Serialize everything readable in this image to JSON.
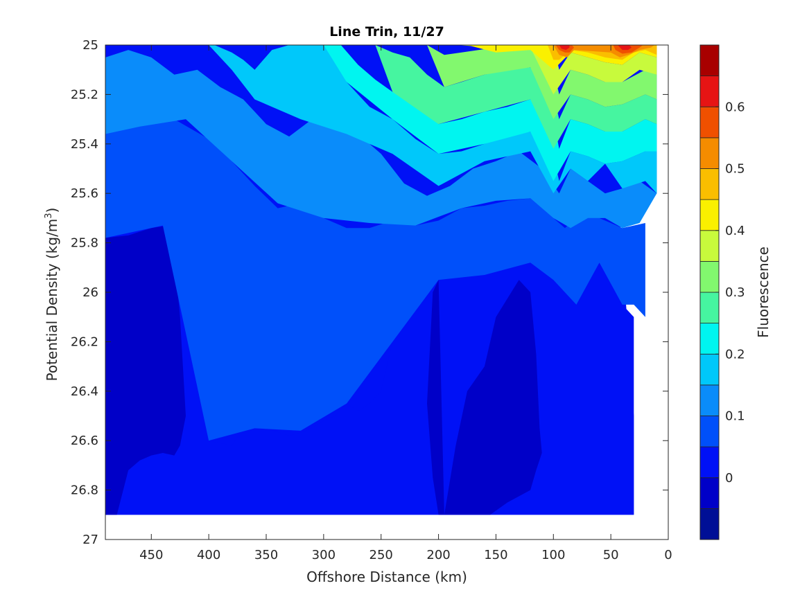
{
  "chart_data": {
    "type": "contour",
    "title": "Line Trin, 11/27",
    "xlabel": "Offshore Distance (km)",
    "ylabel": "Potential Density (kg/m",
    "ylabel_superscript": "3",
    "ylabel_close": ")",
    "colorbar_label": "Fluorescence",
    "xlim": [
      490,
      0
    ],
    "x_reversed": true,
    "ylim": [
      25,
      27
    ],
    "y_reversed": true,
    "x_ticks": [
      450,
      400,
      350,
      300,
      250,
      200,
      150,
      100,
      50,
      0
    ],
    "y_ticks": [
      "25",
      "25.2",
      "25.4",
      "25.6",
      "25.8",
      "26",
      "26.2",
      "26.4",
      "26.6",
      "26.8",
      "27"
    ],
    "colorbar_ticks": [
      "0",
      "0.1",
      "0.2",
      "0.3",
      "0.4",
      "0.5",
      "0.6"
    ],
    "colorbar_range": [
      -0.1,
      0.7
    ],
    "contour_levels": [
      -0.1,
      -0.05,
      0,
      0.05,
      0.1,
      0.15,
      0.2,
      0.25,
      0.3,
      0.35,
      0.4,
      0.45,
      0.5,
      0.55,
      0.6,
      0.65,
      0.7
    ],
    "colormap": [
      "#000f96",
      "#0000c8",
      "#0011f6",
      "#0050fa",
      "#0a8cfa",
      "#00c8fa",
      "#00f5f0",
      "#46f5a0",
      "#82f86e",
      "#c8fa3c",
      "#faf000",
      "#fabe00",
      "#f58c00",
      "#f05000",
      "#e61414",
      "#a80000"
    ],
    "data_extent": {
      "y_max": 26.9,
      "x_min_deep": 30,
      "x_min_shallow": 10
    },
    "regions": [
      {
        "level": 0.025,
        "x": [
          490,
          490,
          480,
          470,
          450,
          430,
          415,
          410,
          400,
          380,
          370,
          360,
          350,
          330,
          315,
          300,
          290,
          280,
          270,
          260,
          250,
          240,
          225,
          200,
          180,
          170,
          150,
          130,
          110,
          100,
          80,
          60,
          40,
          30,
          30,
          100,
          200,
          300,
          400,
          490
        ],
        "y": [
          26.9,
          25.78,
          25.77,
          25.76,
          25.72,
          25.73,
          25.85,
          26.1,
          26.6,
          26.62,
          26.55,
          26.53,
          26.55,
          26.58,
          26.56,
          26.52,
          26.5,
          26.45,
          26.48,
          26.45,
          26.4,
          26.2,
          26.1,
          25.95,
          25.92,
          25.93,
          25.93,
          25.88,
          25.88,
          25.95,
          26.05,
          25.85,
          26.05,
          26.1,
          26.9,
          26.9,
          26.9,
          26.9,
          26.9,
          26.9
        ]
      },
      {
        "level": -0.025,
        "x": [
          490,
          490,
          470,
          450,
          435,
          430,
          425,
          420,
          425,
          430,
          440,
          450,
          460,
          470,
          480,
          490
        ],
        "y": [
          26.9,
          25.78,
          25.77,
          25.74,
          25.73,
          25.85,
          26.1,
          26.5,
          26.62,
          26.66,
          26.65,
          26.66,
          26.68,
          26.72,
          26.9,
          26.9
        ]
      },
      {
        "level": -0.025,
        "x": [
          195,
          185,
          175,
          160,
          150,
          130,
          120,
          115,
          112,
          110,
          115,
          120,
          140,
          155,
          180,
          200,
          205,
          210,
          205,
          200
        ],
        "y": [
          26.9,
          26.62,
          26.4,
          26.3,
          26.1,
          25.95,
          26.0,
          26.25,
          26.55,
          26.65,
          26.72,
          26.8,
          26.85,
          26.9,
          26.9,
          26.9,
          26.75,
          26.45,
          26.0,
          25.95
        ]
      },
      {
        "level": 0.075,
        "x": [
          490,
          480,
          450,
          430,
          400,
          380,
          360,
          340,
          320,
          300,
          280,
          260,
          240,
          220,
          200,
          180,
          160,
          140,
          120,
          100,
          90,
          80,
          60,
          40,
          20,
          20,
          30,
          40,
          60,
          80,
          100,
          120,
          160,
          200,
          240,
          280,
          320,
          360,
          400,
          440,
          490
        ],
        "y": [
          25.36,
          25.33,
          25.32,
          25.3,
          25.38,
          25.47,
          25.57,
          25.66,
          25.64,
          25.7,
          25.74,
          25.74,
          25.71,
          25.73,
          25.71,
          25.66,
          25.65,
          25.63,
          25.62,
          25.7,
          25.74,
          25.7,
          25.7,
          25.74,
          25.72,
          26.1,
          26.05,
          26.05,
          25.88,
          26.05,
          25.95,
          25.88,
          25.93,
          25.95,
          26.2,
          26.45,
          26.56,
          26.55,
          26.6,
          25.73,
          25.78
        ]
      },
      {
        "level": 0.125,
        "x": [
          490,
          470,
          450,
          430,
          410,
          390,
          370,
          350,
          330,
          310,
          290,
          270,
          250,
          230,
          210,
          190,
          170,
          150,
          130,
          110,
          95,
          85,
          70,
          55,
          40,
          25,
          10,
          10,
          25,
          40,
          55,
          70,
          85,
          100,
          120,
          150,
          180,
          220,
          260,
          300,
          340,
          380,
          420,
          460,
          490
        ],
        "y": [
          25.05,
          25.02,
          25.05,
          25.12,
          25.1,
          25.17,
          25.22,
          25.32,
          25.37,
          25.3,
          25.33,
          25.36,
          25.44,
          25.56,
          25.61,
          25.57,
          25.5,
          25.47,
          25.43,
          25.5,
          25.6,
          25.5,
          25.55,
          25.6,
          25.58,
          25.55,
          25.6,
          25.6,
          25.72,
          25.74,
          25.7,
          25.7,
          25.74,
          25.7,
          25.62,
          25.63,
          25.66,
          25.73,
          25.72,
          25.7,
          25.64,
          25.47,
          25.3,
          25.33,
          25.36
        ]
      },
      {
        "level": 0.175,
        "x": [
          400,
          395,
          380,
          370,
          360,
          345,
          330,
          315,
          300,
          290,
          280,
          260,
          240,
          220,
          200,
          180,
          160,
          140,
          120,
          100,
          95,
          85,
          70,
          55,
          40,
          20,
          10,
          10,
          20,
          40,
          55,
          70,
          85,
          100,
          120,
          160,
          200,
          240,
          280,
          320,
          360,
          380,
          400
        ],
        "y": [
          25.0,
          25.0,
          25.03,
          25.06,
          25.1,
          25.02,
          25.0,
          25.0,
          25.0,
          25.06,
          25.15,
          25.25,
          25.3,
          25.38,
          25.44,
          25.43,
          25.4,
          25.37,
          25.35,
          25.45,
          25.55,
          25.43,
          25.45,
          25.48,
          25.47,
          25.43,
          25.43,
          25.6,
          25.55,
          25.58,
          25.48,
          25.55,
          25.5,
          25.6,
          25.43,
          25.47,
          25.57,
          25.44,
          25.36,
          25.3,
          25.22,
          25.1,
          25.0
        ]
      },
      {
        "level": 0.225,
        "x": [
          300,
          285,
          270,
          255,
          240,
          220,
          200,
          180,
          160,
          140,
          120,
          100,
          95,
          85,
          70,
          55,
          40,
          20,
          10,
          10,
          20,
          40,
          55,
          70,
          85,
          100,
          120,
          160,
          200,
          240,
          280,
          300
        ],
        "y": [
          25.0,
          25.0,
          25.08,
          25.14,
          25.19,
          25.23,
          25.32,
          25.3,
          25.27,
          25.25,
          25.22,
          25.3,
          25.42,
          25.3,
          25.32,
          25.35,
          25.35,
          25.3,
          25.32,
          25.43,
          25.43,
          25.47,
          25.48,
          25.45,
          25.43,
          25.55,
          25.35,
          25.4,
          25.44,
          25.3,
          25.15,
          25.0
        ]
      },
      {
        "level": 0.275,
        "x": [
          255,
          240,
          225,
          210,
          195,
          180,
          160,
          140,
          120,
          100,
          95,
          85,
          70,
          55,
          40,
          20,
          10,
          10,
          20,
          40,
          55,
          70,
          85,
          100,
          120,
          160,
          200,
          240,
          255
        ],
        "y": [
          25.0,
          25.03,
          25.05,
          25.12,
          25.17,
          25.15,
          25.12,
          25.1,
          25.09,
          25.2,
          25.3,
          25.2,
          25.22,
          25.25,
          25.24,
          25.2,
          25.22,
          25.32,
          25.3,
          25.35,
          25.35,
          25.32,
          25.3,
          25.42,
          25.22,
          25.27,
          25.32,
          25.19,
          25.0
        ]
      },
      {
        "level": 0.325,
        "x": [
          210,
          195,
          180,
          165,
          150,
          135,
          120,
          100,
          95,
          85,
          70,
          55,
          40,
          20,
          10,
          10,
          20,
          40,
          55,
          70,
          85,
          100,
          120,
          160,
          195,
          210
        ],
        "y": [
          25.0,
          25.04,
          25.03,
          25.02,
          25.01,
          25.0,
          25.01,
          25.1,
          25.2,
          25.1,
          25.12,
          25.15,
          25.15,
          25.1,
          25.12,
          25.22,
          25.2,
          25.24,
          25.25,
          25.22,
          25.2,
          25.3,
          25.09,
          25.12,
          25.17,
          25.0
        ]
      },
      {
        "level": 0.375,
        "x": [
          185,
          170,
          155,
          140,
          125,
          110,
          100,
          95,
          85,
          70,
          55,
          40,
          25,
          10,
          10,
          25,
          40,
          55,
          70,
          85,
          100,
          120,
          150,
          185
        ],
        "y": [
          25.0,
          25.0,
          25.0,
          25.0,
          25.0,
          25.0,
          25.0,
          25.1,
          25.03,
          25.05,
          25.07,
          25.08,
          25.03,
          25.05,
          25.12,
          25.1,
          25.15,
          25.15,
          25.12,
          25.1,
          25.2,
          25.01,
          25.01,
          25.0
        ]
      },
      {
        "level": 0.425,
        "x": [
          175,
          165,
          150,
          140,
          130,
          115,
          105,
          100,
          95,
          85,
          75,
          65,
          55,
          45,
          35,
          25,
          15,
          10,
          10,
          25,
          40,
          55,
          70,
          85,
          100,
          120,
          150,
          175
        ],
        "y": [
          25.0,
          25.0,
          25.0,
          25.0,
          25.0,
          25.0,
          25.0,
          25.0,
          25.04,
          25.0,
          25.0,
          25.0,
          25.0,
          25.0,
          25.0,
          25.0,
          25.0,
          25.0,
          25.05,
          25.03,
          25.08,
          25.07,
          25.05,
          25.03,
          25.1,
          25.02,
          25.03,
          25.0
        ]
      },
      {
        "level": 0.475,
        "x": [
          105,
          100,
          95,
          88,
          80,
          70,
          55,
          45,
          40,
          30,
          20,
          10,
          10,
          20,
          30,
          40,
          55,
          70,
          85,
          95,
          100,
          105
        ],
        "y": [
          25.0,
          25.0,
          25.0,
          25.0,
          25.0,
          25.0,
          25.0,
          25.0,
          25.0,
          25.0,
          25.0,
          25.0,
          25.04,
          25.02,
          25.03,
          25.06,
          25.05,
          25.03,
          25.02,
          25.06,
          25.06,
          25.0
        ]
      },
      {
        "level": 0.525,
        "x": [
          100,
          98,
          92,
          86,
          82,
          50,
          45,
          40,
          35,
          25,
          15,
          12,
          15,
          25,
          35,
          42,
          50,
          82,
          88,
          95,
          100
        ],
        "y": [
          25.0,
          25.0,
          25.0,
          25.0,
          25.0,
          25.0,
          25.0,
          25.0,
          25.0,
          25.0,
          25.0,
          25.0,
          25.01,
          25.02,
          25.04,
          25.05,
          25.03,
          25.02,
          25.05,
          25.04,
          25.0
        ]
      },
      {
        "level": 0.575,
        "x": [
          98,
          94,
          88,
          84,
          82,
          86,
          90,
          95,
          98
        ],
        "y": [
          25.0,
          25.0,
          25.0,
          25.0,
          25.01,
          25.03,
          25.03,
          25.02,
          25.0
        ]
      },
      {
        "level": 0.575,
        "x": [
          48,
          40,
          30,
          22,
          25,
          32,
          40,
          46,
          48
        ],
        "y": [
          25.0,
          25.0,
          25.0,
          25.0,
          25.01,
          25.03,
          25.035,
          25.02,
          25.0
        ]
      },
      {
        "level": 0.625,
        "x": [
          95,
          91,
          86,
          86,
          89,
          93,
          95
        ],
        "y": [
          25.0,
          25.0,
          25.0,
          25.01,
          25.02,
          25.015,
          25.0
        ]
      },
      {
        "level": 0.625,
        "x": [
          44,
          40,
          34,
          32,
          35,
          40,
          44
        ],
        "y": [
          25.0,
          25.0,
          25.0,
          25.01,
          25.02,
          25.02,
          25.0
        ]
      }
    ]
  }
}
